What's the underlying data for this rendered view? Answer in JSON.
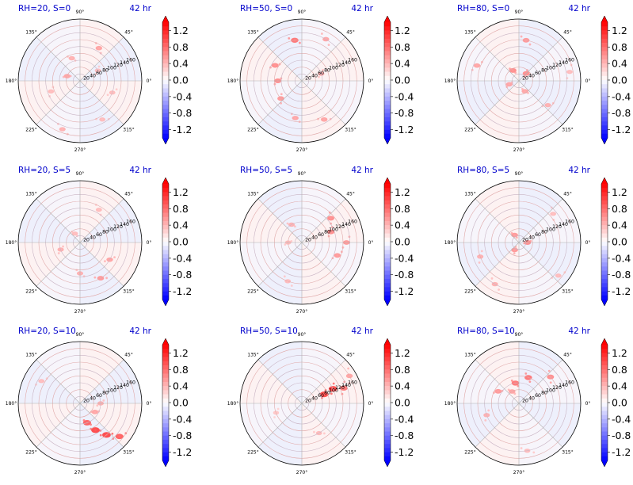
{
  "colors": {
    "title": "#0000cc",
    "cmap_low": "#0000ff",
    "cmap_mid": "#ffffff",
    "cmap_high": "#ff0000",
    "grid_light": "#b0b0b0",
    "ring_contour": "#e8a09a"
  },
  "chart_data": {
    "type": "polar-heatmap",
    "layout": "3x3 grid of polar panels",
    "colormap": "bwr (discrete)",
    "colorbar_ticks": [
      "1.2",
      "0.8",
      "0.4",
      "0.0",
      "-0.4",
      "-0.8",
      "-1.2"
    ],
    "colorbar_range": [
      -1.4,
      1.4
    ],
    "angle_ticks": [
      "0°",
      "45°",
      "90°",
      "135°",
      "180°",
      "225°",
      "270°",
      "315°"
    ],
    "radial_ticks": [
      "20",
      "40",
      "60",
      "80",
      "100",
      "120",
      "140",
      "160"
    ],
    "radial_range": [
      0,
      180
    ],
    "radial_label_angle_deg": 22.5,
    "panels": [
      {
        "title_left": "RH=20, S=0",
        "title_right": "42 hr",
        "feature": "scattered pink speckles, faint ring near r=150",
        "blobs": [
          [
            60,
            110,
            0.4
          ],
          [
            110,
            70,
            0.35
          ],
          [
            160,
            40,
            0.4
          ],
          [
            200,
            90,
            0.3
          ],
          [
            250,
            150,
            0.35
          ],
          [
            300,
            130,
            0.3
          ],
          [
            340,
            100,
            0.3
          ],
          [
            30,
            60,
            0.3
          ]
        ]
      },
      {
        "title_left": "RH=50, S=0",
        "title_right": "42 hr",
        "feature": "spiral band of positive values around r=80-130",
        "blobs": [
          [
            100,
            120,
            0.6
          ],
          [
            150,
            90,
            0.5
          ],
          [
            180,
            70,
            0.5
          ],
          [
            220,
            80,
            0.45
          ],
          [
            260,
            110,
            0.4
          ],
          [
            300,
            130,
            0.4
          ],
          [
            60,
            140,
            0.4
          ],
          [
            20,
            60,
            0.35
          ]
        ]
      },
      {
        "title_left": "RH=80, S=0",
        "title_right": "42 hr",
        "feature": "scattered red blobs, ring near r=30",
        "blobs": [
          [
            45,
            30,
            0.5
          ],
          [
            120,
            35,
            0.5
          ],
          [
            200,
            30,
            0.4
          ],
          [
            300,
            35,
            0.4
          ],
          [
            80,
            120,
            0.45
          ],
          [
            160,
            130,
            0.4
          ],
          [
            320,
            110,
            0.35
          ],
          [
            10,
            150,
            0.3
          ]
        ]
      },
      {
        "title_left": "RH=20, S=5",
        "title_right": "42 hr",
        "feature": "sparse speckles, arc on right side",
        "blobs": [
          [
            300,
            120,
            0.45
          ],
          [
            330,
            100,
            0.4
          ],
          [
            270,
            90,
            0.35
          ],
          [
            200,
            60,
            0.35
          ],
          [
            120,
            30,
            0.3
          ],
          [
            60,
            110,
            0.3
          ]
        ]
      },
      {
        "title_left": "RH=50, S=5",
        "title_right": "42 hr",
        "feature": "positive band on right/upper-right",
        "blobs": [
          [
            20,
            90,
            0.5
          ],
          [
            40,
            110,
            0.5
          ],
          [
            0,
            130,
            0.45
          ],
          [
            340,
            110,
            0.45
          ],
          [
            120,
            60,
            0.35
          ],
          [
            180,
            40,
            0.3
          ],
          [
            250,
            120,
            0.3
          ]
        ]
      },
      {
        "title_left": "RH=80, S=5",
        "title_right": "42 hr",
        "feature": "ring near r=20, scattered blobs",
        "blobs": [
          [
            0,
            25,
            0.5
          ],
          [
            120,
            25,
            0.45
          ],
          [
            240,
            25,
            0.45
          ],
          [
            200,
            120,
            0.35
          ],
          [
            240,
            140,
            0.35
          ],
          [
            40,
            130,
            0.3
          ],
          [
            320,
            150,
            0.3
          ]
        ]
      },
      {
        "title_left": "RH=20, S=10",
        "title_right": "42 hr",
        "feature": "strong arc in lower-right quadrant",
        "blobs": [
          [
            290,
            60,
            0.7
          ],
          [
            300,
            90,
            0.8
          ],
          [
            310,
            120,
            0.8
          ],
          [
            320,
            150,
            0.7
          ],
          [
            0,
            60,
            0.35
          ],
          [
            330,
            50,
            0.4
          ],
          [
            150,
            130,
            0.3
          ]
        ]
      },
      {
        "title_left": "RH=50, S=10",
        "title_right": "42 hr",
        "feature": "streak along radial label line upper-right",
        "blobs": [
          [
            22,
            70,
            0.8
          ],
          [
            25,
            100,
            0.8
          ],
          [
            20,
            130,
            0.6
          ],
          [
            30,
            160,
            0.4
          ],
          [
            300,
            100,
            0.3
          ],
          [
            200,
            80,
            0.25
          ]
        ]
      },
      {
        "title_left": "RH=80, S=10",
        "title_right": "42 hr",
        "feature": "band upper-left to upper-right, faint blue patch near center",
        "blobs": [
          [
            100,
            60,
            0.6
          ],
          [
            70,
            80,
            0.6
          ],
          [
            40,
            120,
            0.5
          ],
          [
            150,
            70,
            0.45
          ],
          [
            200,
            100,
            0.35
          ],
          [
            280,
            140,
            0.3
          ],
          [
            120,
            40,
            0.4
          ]
        ]
      }
    ]
  }
}
